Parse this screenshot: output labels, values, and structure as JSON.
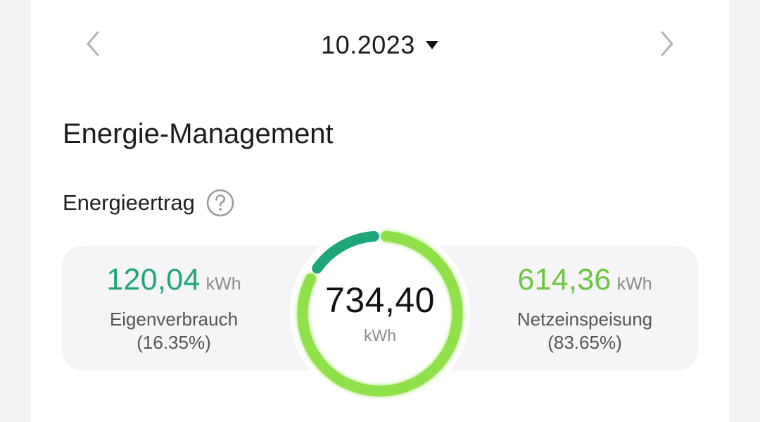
{
  "month_nav": {
    "month": "10.2023",
    "prev_icon": "chevron-left-icon",
    "next_icon": "chevron-right-icon",
    "dropdown_icon": "caret-down-icon"
  },
  "section": {
    "title": "Energie-Management"
  },
  "energy_yield": {
    "label": "Energieertrag",
    "help_icon": "question-circle-icon",
    "total": {
      "value": "734,40",
      "unit": "kWh"
    },
    "self_use": {
      "value": "120,04",
      "unit": "kWh",
      "label": "Eigenverbrauch",
      "percent": "(16.35%)",
      "fraction": 0.1635,
      "color": "#1ea67a"
    },
    "feed_in": {
      "value": "614,36",
      "unit": "kWh",
      "label": "Netzeinspeisung",
      "percent": "(83.65%)",
      "fraction": 0.8365,
      "color": "#8fe04a"
    }
  },
  "colors": {
    "self_use": "#1ea67a",
    "feed_in_text": "#6cc63f",
    "feed_in_ring": "#8fe04a",
    "panel_bg": "#f5f5f7"
  }
}
